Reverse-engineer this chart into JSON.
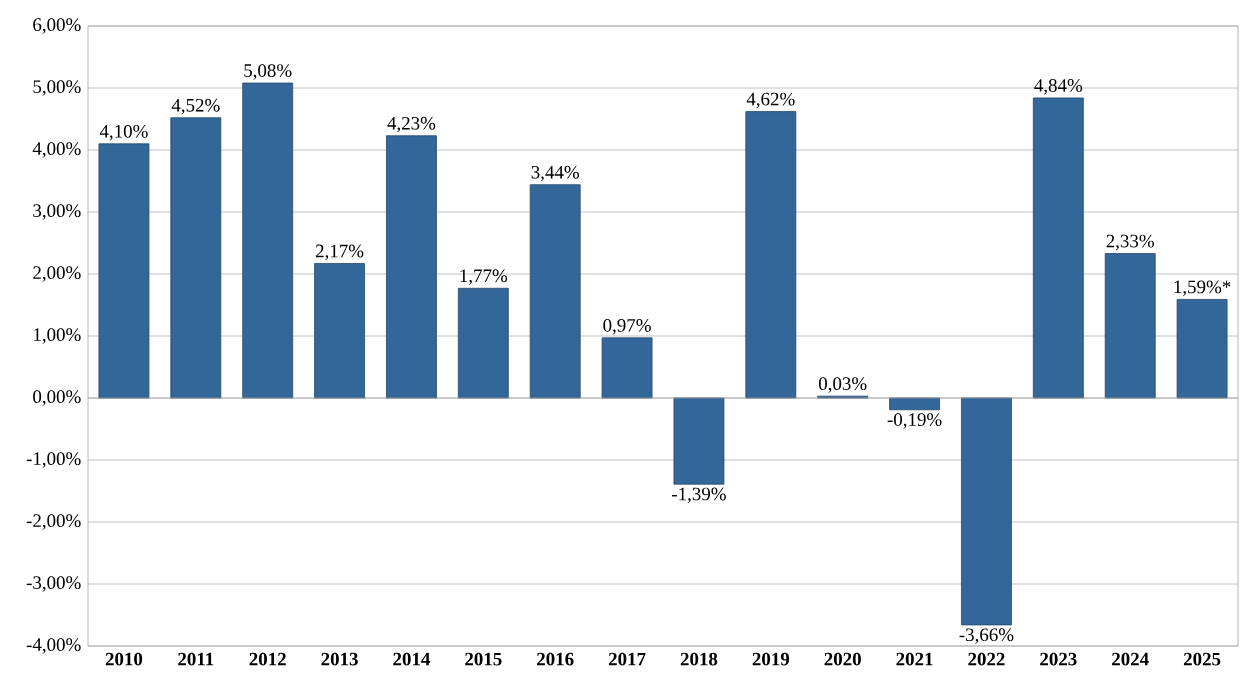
{
  "chart_data": {
    "type": "bar",
    "categories": [
      "2010",
      "2011",
      "2012",
      "2013",
      "2014",
      "2015",
      "2016",
      "2017",
      "2018",
      "2019",
      "2020",
      "2021",
      "2022",
      "2023",
      "2024",
      "2025"
    ],
    "values": [
      4.1,
      4.52,
      5.08,
      2.17,
      4.23,
      1.77,
      3.44,
      0.97,
      -1.39,
      4.62,
      0.03,
      -0.19,
      -3.66,
      4.84,
      2.33,
      1.59
    ],
    "value_labels": [
      "4,10%",
      "4,52%",
      "5,08%",
      "2,17%",
      "4,23%",
      "1,77%",
      "3,44%",
      "0,97%",
      "-1,39%",
      "4,62%",
      "0,03%",
      "-0,19%",
      "-3,66%",
      "4,84%",
      "2,33%",
      "1,59%*"
    ],
    "color": "#336699",
    "ylim": [
      -4,
      6
    ],
    "yticks": [
      {
        "value": -4,
        "label": "-4,00%"
      },
      {
        "value": -3,
        "label": "-3,00%"
      },
      {
        "value": -2,
        "label": "-2,00%"
      },
      {
        "value": -1,
        "label": "-1,00%"
      },
      {
        "value": 0,
        "label": "0,00%"
      },
      {
        "value": 1,
        "label": "1,00%"
      },
      {
        "value": 2,
        "label": "2,00%"
      },
      {
        "value": 3,
        "label": "3,00%"
      },
      {
        "value": 4,
        "label": "4,00%"
      },
      {
        "value": 5,
        "label": "5,00%"
      },
      {
        "value": 6,
        "label": "6,00%"
      }
    ],
    "grid": "y"
  }
}
